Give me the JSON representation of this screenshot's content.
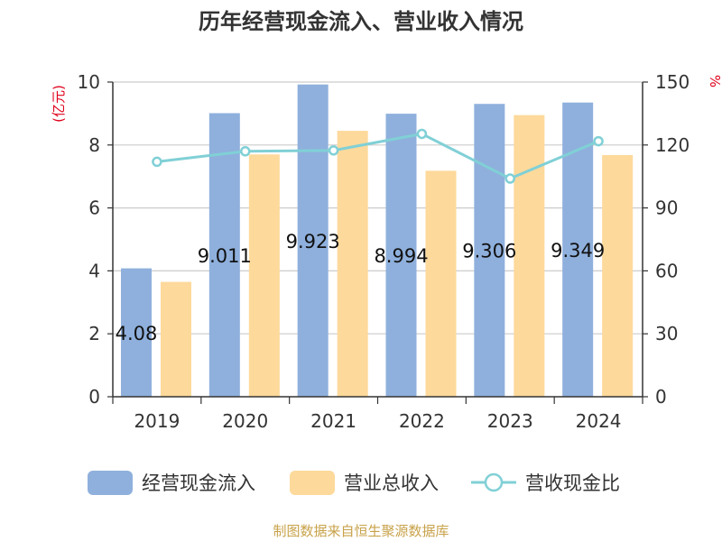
{
  "chart_data": {
    "type": "bar",
    "title": "历年经营现金流入、营业收入情况",
    "categories": [
      "2019",
      "2020",
      "2021",
      "2022",
      "2023",
      "2024"
    ],
    "series": [
      {
        "name": "经营现金流入",
        "kind": "bar",
        "axis": "left",
        "color": "#8fb0dc",
        "values": [
          4.08,
          9.011,
          9.923,
          8.994,
          9.306,
          9.349
        ],
        "labels": [
          "4.08",
          "9.011",
          "9.923",
          "8.994",
          "9.306",
          "9.349"
        ]
      },
      {
        "name": "营业总收入",
        "kind": "bar",
        "axis": "left",
        "color": "#fdd99b",
        "values": [
          3.65,
          7.7,
          8.45,
          7.18,
          8.95,
          7.68
        ]
      },
      {
        "name": "营收现金比",
        "kind": "line",
        "axis": "right",
        "color": "#80d0d6",
        "values": [
          112,
          117,
          117.4,
          125.3,
          104,
          121.8
        ]
      }
    ],
    "y_left": {
      "label": "(亿元)",
      "min": 0,
      "max": 10,
      "ticks": [
        "0",
        "2",
        "4",
        "6",
        "8",
        "10"
      ]
    },
    "y_right": {
      "label": "%",
      "min": 0,
      "max": 150,
      "ticks": [
        "0",
        "30",
        "60",
        "90",
        "120",
        "150"
      ]
    },
    "grid": true,
    "legend": "bottom"
  },
  "source": "制图数据来自恒生聚源数据库"
}
